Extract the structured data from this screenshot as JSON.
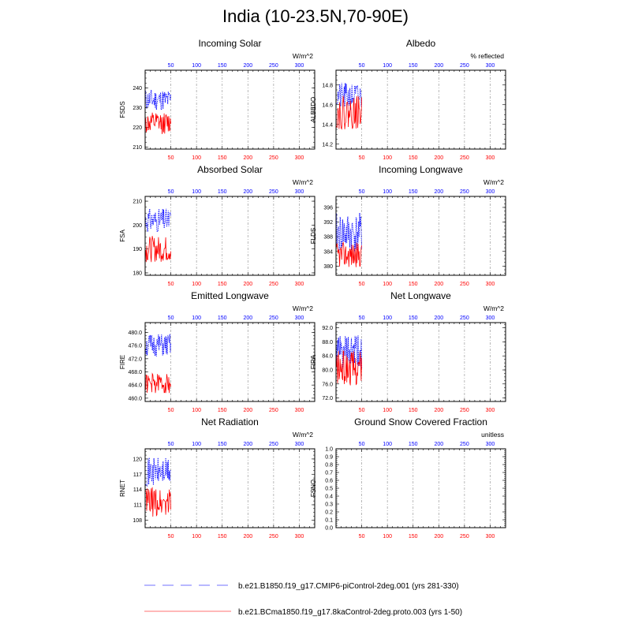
{
  "title": "India (10-23.5N,70-90E)",
  "legend": [
    {
      "label": "b.e21.B1850.f19_g17.CMIP6-piControl-2deg.001 (yrs 281-330)",
      "color": "#0000ff",
      "style": "dashed"
    },
    {
      "label": "b.e21.BCma1850.f19_g17.8kaControl-2deg.proto.003 (yrs 1-50)",
      "color": "#ff0000",
      "style": "solid"
    }
  ],
  "chart_data": [
    {
      "type": "line",
      "title": "Incoming Solar",
      "ylabel": "FSDS",
      "units": "W/m^2",
      "xlim": [
        0,
        330
      ],
      "ylim": [
        209,
        249
      ],
      "yticks": [
        "210",
        "220",
        "230",
        "240"
      ],
      "ytick_values": [
        210,
        220,
        230,
        240
      ],
      "xticks": [
        "50",
        "100",
        "150",
        "200",
        "250",
        "300"
      ],
      "grid_x": [
        50,
        100,
        150,
        200,
        250,
        300
      ],
      "series": [
        {
          "color": "#0000ff",
          "style": "dashed",
          "x_range": [
            1,
            50
          ],
          "base": 234.0,
          "amp": 5.5,
          "seed": 11
        },
        {
          "color": "#ff0000",
          "style": "solid",
          "x_range": [
            1,
            50
          ],
          "base": 222.0,
          "amp": 5.5,
          "seed": 12
        }
      ]
    },
    {
      "type": "line",
      "title": "Albedo",
      "ylabel": "ALBEDO",
      "units": "% reflected",
      "xlim": [
        0,
        330
      ],
      "ylim": [
        14.15,
        14.95
      ],
      "yticks": [
        "14.2",
        "14.4",
        "14.6",
        "14.8"
      ],
      "ytick_values": [
        14.2,
        14.4,
        14.6,
        14.8
      ],
      "xticks": [
        "50",
        "100",
        "150",
        "200",
        "250",
        "300"
      ],
      "grid_x": [
        50,
        100,
        150,
        200,
        250,
        300
      ],
      "series": [
        {
          "color": "#0000ff",
          "style": "dashed",
          "x_range": [
            1,
            50
          ],
          "base": 14.68,
          "amp": 0.14,
          "seed": 21
        },
        {
          "color": "#ff0000",
          "style": "solid",
          "x_range": [
            1,
            50
          ],
          "base": 14.52,
          "amp": 0.17,
          "seed": 22
        }
      ]
    },
    {
      "type": "line",
      "title": "Absorbed Solar",
      "ylabel": "FSA",
      "units": "W/m^2",
      "xlim": [
        0,
        330
      ],
      "ylim": [
        179,
        212
      ],
      "yticks": [
        "180",
        "190",
        "200",
        "210"
      ],
      "ytick_values": [
        180,
        190,
        200,
        210
      ],
      "xticks": [
        "50",
        "100",
        "150",
        "200",
        "250",
        "300"
      ],
      "grid_x": [
        50,
        100,
        150,
        200,
        250,
        300
      ],
      "series": [
        {
          "color": "#0000ff",
          "style": "dashed",
          "x_range": [
            1,
            50
          ],
          "base": 202.0,
          "amp": 5.0,
          "seed": 31
        },
        {
          "color": "#ff0000",
          "style": "solid",
          "x_range": [
            1,
            50
          ],
          "base": 190.0,
          "amp": 5.5,
          "seed": 32
        }
      ]
    },
    {
      "type": "line",
      "title": "Incoming Longwave",
      "ylabel": "FLDS",
      "units": "W/m^2",
      "xlim": [
        0,
        330
      ],
      "ylim": [
        377.5,
        399
      ],
      "yticks": [
        "380",
        "384",
        "388",
        "392",
        "396"
      ],
      "ytick_values": [
        380,
        384,
        388,
        392,
        396
      ],
      "xticks": [
        "50",
        "100",
        "150",
        "200",
        "250",
        "300"
      ],
      "grid_x": [
        50,
        100,
        150,
        200,
        250,
        300
      ],
      "series": [
        {
          "color": "#0000ff",
          "style": "dashed",
          "x_range": [
            1,
            50
          ],
          "base": 389.0,
          "amp": 5.5,
          "seed": 41
        },
        {
          "color": "#ff0000",
          "style": "solid",
          "x_range": [
            1,
            50
          ],
          "base": 383.0,
          "amp": 3.5,
          "seed": 42
        }
      ]
    },
    {
      "type": "line",
      "title": "Emitted Longwave",
      "ylabel": "FIRE",
      "units": "W/m^2",
      "xlim": [
        0,
        330
      ],
      "ylim": [
        459,
        483
      ],
      "yticks": [
        "460.0",
        "464.0",
        "468.0",
        "472.0",
        "476.0",
        "480.0"
      ],
      "ytick_values": [
        460,
        464,
        468,
        472,
        476,
        480
      ],
      "xticks": [
        "50",
        "100",
        "150",
        "200",
        "250",
        "300"
      ],
      "grid_x": [
        50,
        100,
        150,
        200,
        250,
        300
      ],
      "series": [
        {
          "color": "#0000ff",
          "style": "dashed",
          "x_range": [
            1,
            50
          ],
          "base": 476.0,
          "amp": 3.5,
          "seed": 51
        },
        {
          "color": "#ff0000",
          "style": "solid",
          "x_range": [
            1,
            50
          ],
          "base": 464.5,
          "amp": 3.0,
          "seed": 52
        }
      ]
    },
    {
      "type": "line",
      "title": "Net Longwave",
      "ylabel": "FIRA",
      "units": "W/m^2",
      "xlim": [
        0,
        330
      ],
      "ylim": [
        71,
        93.5
      ],
      "yticks": [
        "72.0",
        "76.0",
        "80.0",
        "84.0",
        "88.0",
        "92.0"
      ],
      "ytick_values": [
        72,
        76,
        80,
        84,
        88,
        92
      ],
      "xticks": [
        "50",
        "100",
        "150",
        "200",
        "250",
        "300"
      ],
      "grid_x": [
        50,
        100,
        150,
        200,
        250,
        300
      ],
      "series": [
        {
          "color": "#0000ff",
          "style": "dashed",
          "x_range": [
            1,
            50
          ],
          "base": 85.0,
          "amp": 5.0,
          "seed": 61
        },
        {
          "color": "#ff0000",
          "style": "solid",
          "x_range": [
            1,
            50
          ],
          "base": 80.5,
          "amp": 5.0,
          "seed": 62
        }
      ]
    },
    {
      "type": "line",
      "title": "Net Radiation",
      "ylabel": "RNET",
      "units": "W/m^2",
      "xlim": [
        0,
        330
      ],
      "ylim": [
        106.5,
        122
      ],
      "yticks": [
        "108",
        "111",
        "114",
        "117",
        "120"
      ],
      "ytick_values": [
        108,
        111,
        114,
        117,
        120
      ],
      "xticks": [
        "50",
        "100",
        "150",
        "200",
        "250",
        "300"
      ],
      "grid_x": [
        50,
        100,
        150,
        200,
        250,
        300
      ],
      "series": [
        {
          "color": "#0000ff",
          "style": "dashed",
          "x_range": [
            1,
            50
          ],
          "base": 117.5,
          "amp": 2.8,
          "seed": 71
        },
        {
          "color": "#ff0000",
          "style": "solid",
          "x_range": [
            1,
            50
          ],
          "base": 111.5,
          "amp": 3.0,
          "seed": 72
        }
      ]
    },
    {
      "type": "line",
      "title": "Ground Snow Covered Fraction",
      "ylabel": "FSNO",
      "units": "unitless",
      "xlim": [
        0,
        330
      ],
      "ylim": [
        0,
        1
      ],
      "yticks": [
        "0.0",
        "0.1",
        "0.2",
        "0.3",
        "0.4",
        "0.5",
        "0.6",
        "0.7",
        "0.8",
        "0.9",
        "1.0"
      ],
      "ytick_values": [
        0,
        0.1,
        0.2,
        0.3,
        0.4,
        0.5,
        0.6,
        0.7,
        0.8,
        0.9,
        1.0
      ],
      "xticks": [
        "50",
        "100",
        "150",
        "200",
        "250",
        "300"
      ],
      "grid_x": [
        50,
        100,
        150,
        200,
        250,
        300
      ],
      "series": []
    }
  ]
}
